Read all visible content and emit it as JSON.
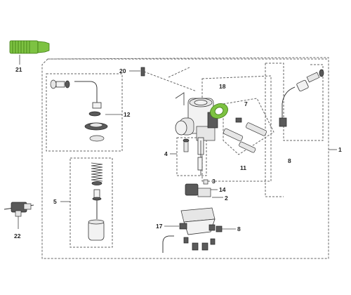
{
  "callouts": {
    "c1": "1",
    "c2": "2",
    "c3": "3",
    "c4": "4",
    "c5": "5",
    "c6": "6",
    "c7": "7",
    "c8a": "8",
    "c8b": "8",
    "c11": "11",
    "c12": "12",
    "c14": "14",
    "c17": "17",
    "c18": "18",
    "c20": "20",
    "c21": "21",
    "c22": "22"
  },
  "colors": {
    "highlight_green": "#7dc242",
    "frame_gray": "#666666",
    "part_gray": "#5a5a5a"
  }
}
